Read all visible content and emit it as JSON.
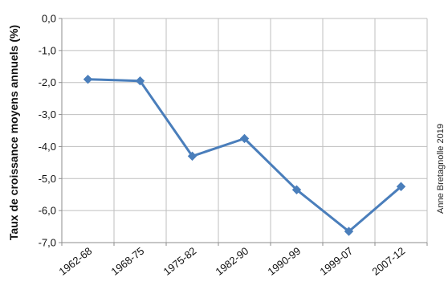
{
  "chart_data": {
    "type": "line",
    "ylabel": "Taux de croissance moyens annuels (%)",
    "xlabel": "",
    "categories": [
      "1962-68",
      "1968-75",
      "1975-82",
      "1982-90",
      "1990-99",
      "1999-07",
      "2007-12"
    ],
    "series": [
      {
        "values": [
          -1.9,
          -1.95,
          -4.3,
          -3.75,
          -5.35,
          -6.65,
          -5.25
        ],
        "color": "#4a7ebb"
      }
    ],
    "yticks": [
      "0,0",
      "-1,0",
      "-2,0",
      "-3,0",
      "-4,0",
      "-5,0",
      "-6,0",
      "-7,0"
    ],
    "ytick_values": [
      0,
      -1,
      -2,
      -3,
      -4,
      -5,
      -6,
      -7
    ],
    "ylim": [
      -7,
      0
    ],
    "grid": true,
    "legend": "none",
    "marker": "diamond"
  },
  "credit": "Anne Bretagnolle 2019"
}
